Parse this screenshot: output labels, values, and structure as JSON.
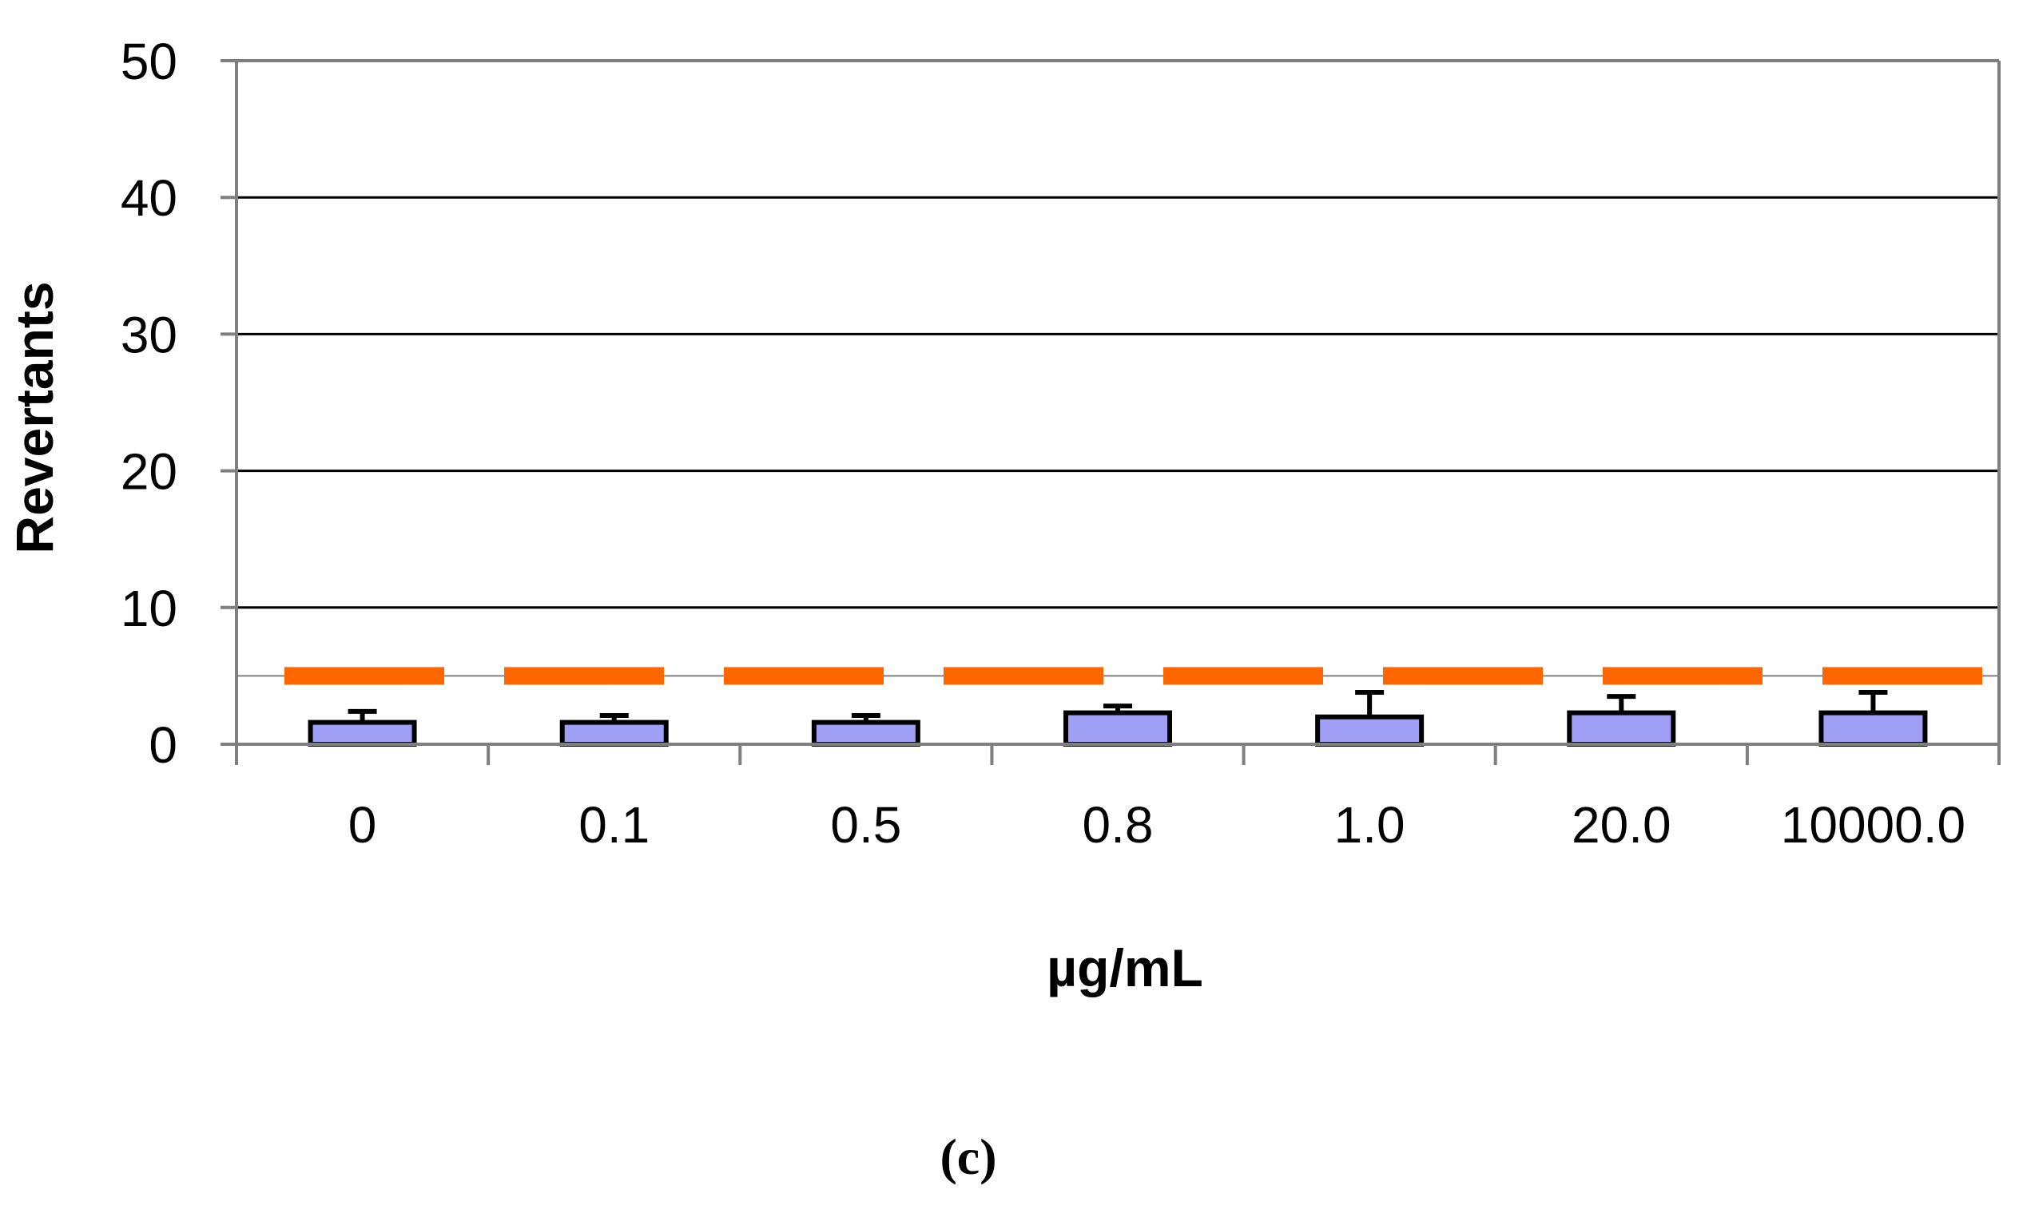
{
  "chart_data": {
    "type": "bar",
    "title": "",
    "xlabel": "µg/mL",
    "ylabel": "Revertants",
    "panel_label": "(c)",
    "ylim": [
      0,
      50
    ],
    "yticks": [
      0,
      10,
      20,
      30,
      40,
      50
    ],
    "ytick_labels": [
      "0",
      "10",
      "20",
      "30",
      "40",
      "50"
    ],
    "categories": [
      "0",
      "0.1",
      "0.5",
      "0.8",
      "1.0",
      "20.0",
      "10000.0"
    ],
    "values": [
      1.6,
      1.6,
      1.6,
      2.3,
      2.0,
      2.3,
      2.3
    ],
    "error": [
      0.8,
      0.5,
      0.5,
      0.5,
      1.8,
      1.2,
      1.5
    ],
    "threshold": 5,
    "grid": true,
    "colors": {
      "bar_fill": "#9f9ff5",
      "bar_stroke": "#000000",
      "threshold_line": "#ff6600",
      "grid": "#000000",
      "axis": "#7f7f7f",
      "plot_border": "#7f7f7f"
    }
  }
}
